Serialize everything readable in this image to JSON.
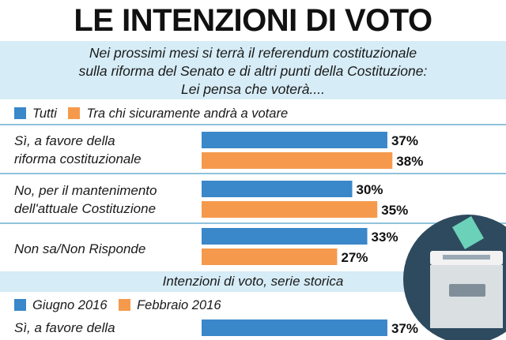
{
  "title": "LE INTENZIONI DI VOTO",
  "subtitle": [
    "Nei prossimi mesi si terrà il referendum costituzionale",
    "sulla riforma del Senato e di altri punti della Costituzione:",
    "Lei pensa che voterà...."
  ],
  "colors": {
    "blue": "#3a87c9",
    "orange": "#f59a4c",
    "band": "#d6ecf6",
    "separator": "#8fc3dc"
  },
  "legend1": [
    {
      "label": "Tutti",
      "color": "#3a87c9"
    },
    {
      "label": "Tra chi sicuramente andrà a votare",
      "color": "#f59a4c"
    }
  ],
  "chart_data": {
    "type": "bar",
    "orientation": "horizontal",
    "categories": [
      "Sì, a favore della riforma costituzionale",
      "No, per il mantenimento dell'attuale Costituzione",
      "Non sa/Non Risponde"
    ],
    "category_lines": [
      [
        "Sì, a favore della",
        "riforma costituzionale"
      ],
      [
        "No, per il mantenimento",
        "dell'attuale Costituzione"
      ],
      [
        "Non sa/Non Risponde"
      ]
    ],
    "series": [
      {
        "name": "Tutti",
        "values": [
          37,
          30,
          33
        ],
        "labels": [
          "37%",
          "30%",
          "33%"
        ]
      },
      {
        "name": "Tra chi sicuramente andrà a votare",
        "values": [
          38,
          35,
          27
        ],
        "labels": [
          "38%",
          "35%",
          "27%"
        ]
      }
    ],
    "unit": "%",
    "xlim": [
      0,
      100
    ]
  },
  "historical": {
    "heading": "Intenzioni di voto, serie storica",
    "legend": [
      {
        "label": "Giugno 2016",
        "color": "#3a87c9"
      },
      {
        "label": "Febbraio 2016",
        "color": "#f59a4c"
      }
    ],
    "first_row_label": "Sì, a favore della",
    "first_row_value": 37,
    "first_row_value_label": "37%"
  },
  "icon": "ballot-box-icon"
}
